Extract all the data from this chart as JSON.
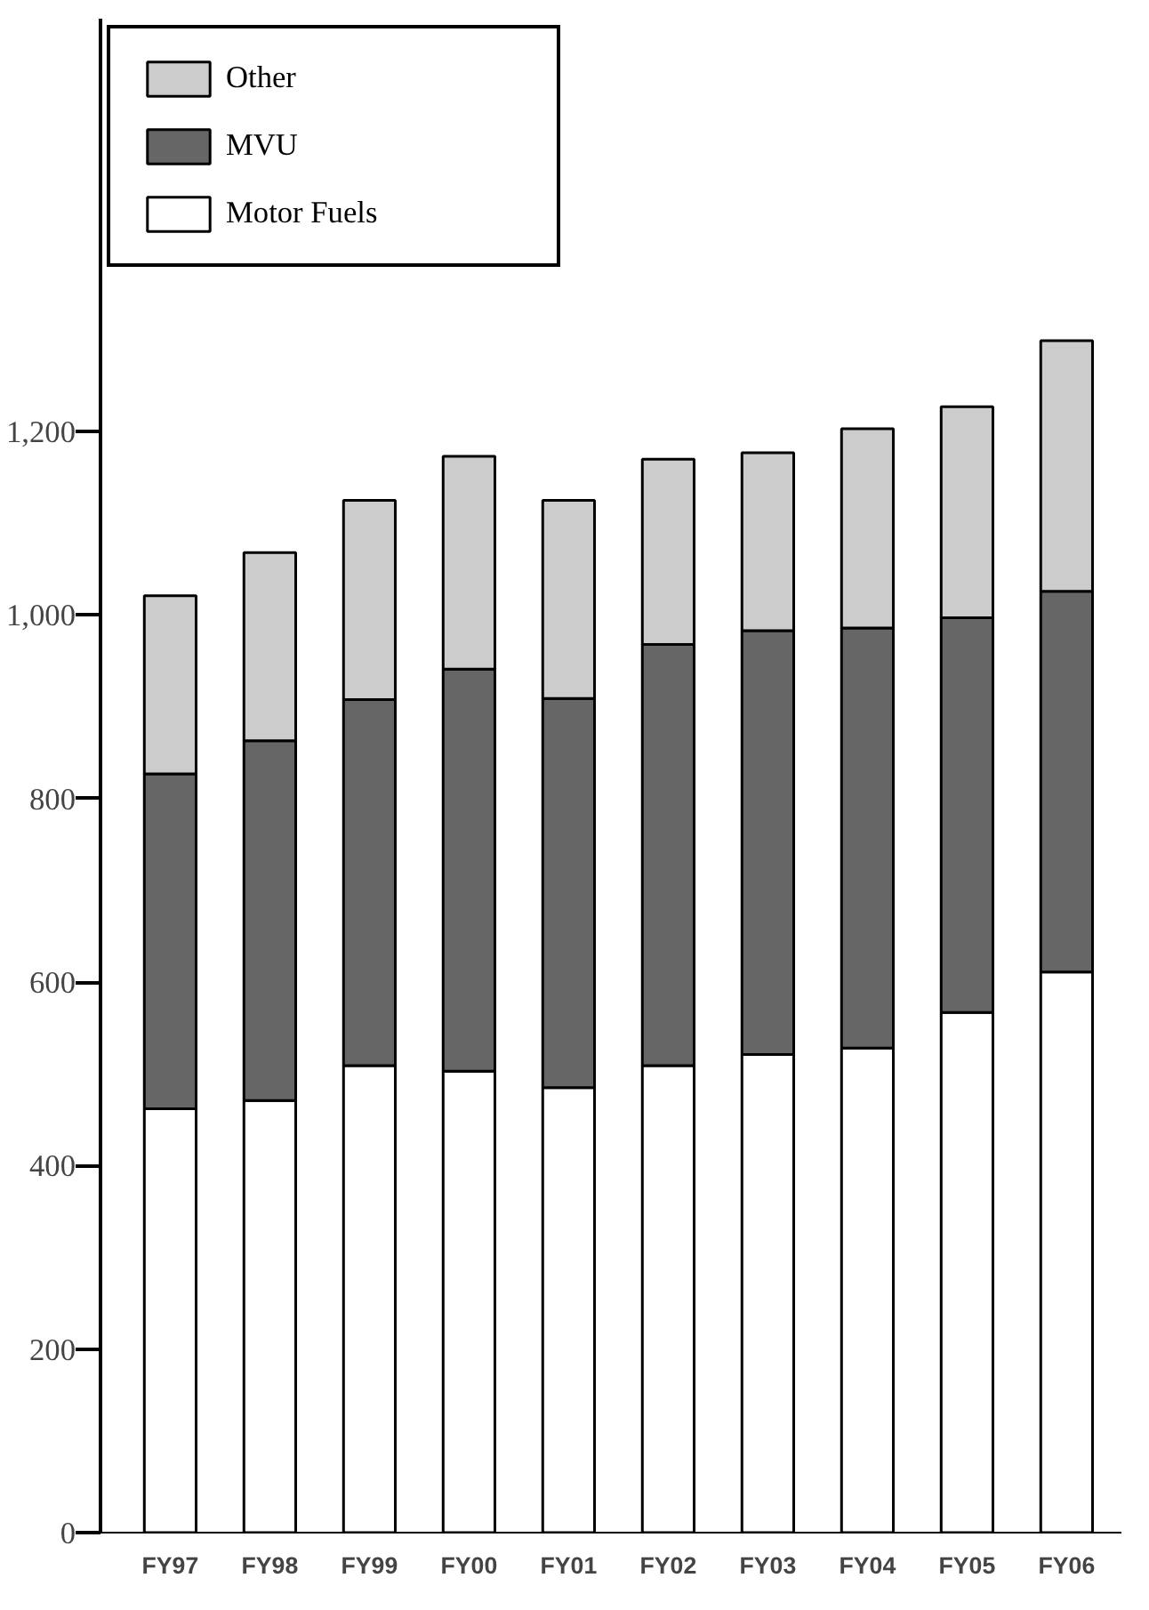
{
  "chart_data": {
    "type": "bar",
    "stacked": true,
    "categories": [
      "FY97",
      "FY98",
      "FY99",
      "FY00",
      "FY01",
      "FY02",
      "FY03",
      "FY04",
      "FY05",
      "FY06"
    ],
    "series": [
      {
        "name": "Motor Fuels",
        "color": "#ffffff",
        "values": [
          462,
          471,
          509,
          503,
          485,
          509,
          521,
          528,
          567,
          611
        ]
      },
      {
        "name": "MVU",
        "color": "#666666",
        "values": [
          365,
          392,
          399,
          438,
          424,
          459,
          462,
          458,
          430,
          415
        ]
      },
      {
        "name": "Other",
        "color": "#cccccc",
        "values": [
          194,
          205,
          217,
          232,
          216,
          202,
          194,
          217,
          230,
          273
        ]
      }
    ],
    "ylim": [
      0,
      1650
    ],
    "yticks": [
      0,
      200,
      400,
      600,
      800,
      {
        "value": 1000,
        "label": "1,000"
      },
      {
        "value": 1200,
        "label": "1,200"
      }
    ],
    "grid": false,
    "legend": "top left"
  }
}
